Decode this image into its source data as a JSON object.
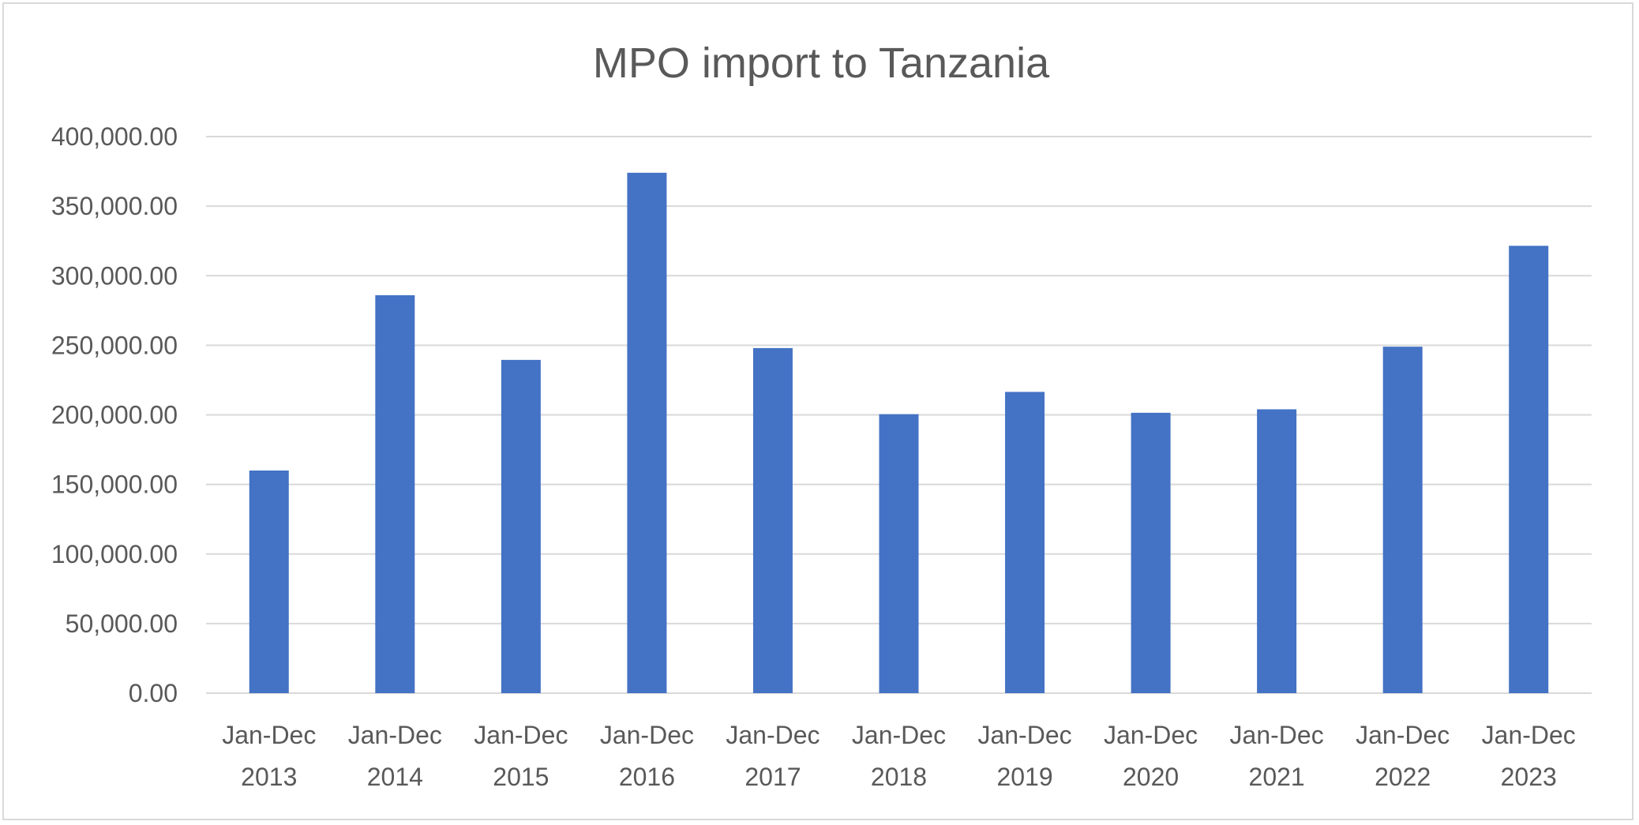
{
  "chart_data": {
    "type": "bar",
    "title": "MPO import to Tanzania",
    "xlabel": "",
    "ylabel": "",
    "ylim": [
      0,
      400000
    ],
    "yticks": [
      "0.00",
      "50,000.00",
      "100,000.00",
      "150,000.00",
      "200,000.00",
      "250,000.00",
      "300,000.00",
      "350,000.00",
      "400,000.00"
    ],
    "ytick_values": [
      0,
      50000,
      100000,
      150000,
      200000,
      250000,
      300000,
      350000,
      400000
    ],
    "grid": true,
    "legend": "none",
    "categories": [
      [
        "Jan-Dec",
        "2013"
      ],
      [
        "Jan-Dec",
        "2014"
      ],
      [
        "Jan-Dec",
        "2015"
      ],
      [
        "Jan-Dec",
        "2016"
      ],
      [
        "Jan-Dec",
        "2017"
      ],
      [
        "Jan-Dec",
        "2018"
      ],
      [
        "Jan-Dec",
        "2019"
      ],
      [
        "Jan-Dec",
        "2020"
      ],
      [
        "Jan-Dec",
        "2021"
      ],
      [
        "Jan-Dec",
        "2022"
      ],
      [
        "Jan-Dec",
        "2023"
      ]
    ],
    "values": [
      160000,
      286000,
      239500,
      374000,
      248000,
      200500,
      216500,
      201500,
      204000,
      249000,
      321500
    ],
    "bar_color": "#4472c4",
    "grid_color": "#d9d9d9",
    "text_color": "#595959"
  }
}
